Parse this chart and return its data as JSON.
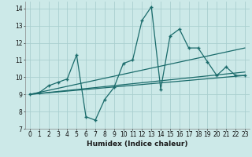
{
  "xlabel": "Humidex (Indice chaleur)",
  "background_color": "#cce9e8",
  "grid_color": "#aacfcf",
  "line_color": "#1a6b6b",
  "xlim": [
    -0.5,
    23.5
  ],
  "ylim": [
    7,
    14.4
  ],
  "xticks": [
    0,
    1,
    2,
    3,
    4,
    5,
    6,
    7,
    8,
    9,
    10,
    11,
    12,
    13,
    14,
    15,
    16,
    17,
    18,
    19,
    20,
    21,
    22,
    23
  ],
  "yticks": [
    7,
    8,
    9,
    10,
    11,
    12,
    13,
    14
  ],
  "series1_x": [
    0,
    1,
    2,
    3,
    4,
    5,
    6,
    7,
    8,
    9,
    10,
    11,
    12,
    13,
    14,
    15,
    16,
    17,
    18,
    19,
    20,
    21,
    22,
    23
  ],
  "series1_y": [
    9.0,
    9.1,
    9.5,
    9.7,
    9.9,
    11.3,
    7.7,
    7.5,
    8.7,
    9.4,
    10.8,
    11.0,
    13.3,
    14.1,
    9.3,
    12.4,
    12.8,
    11.7,
    11.7,
    10.9,
    10.1,
    10.6,
    10.1,
    10.1
  ],
  "series2_x": [
    0,
    23
  ],
  "series2_y": [
    9.0,
    10.3
  ],
  "series3_x": [
    0,
    23
  ],
  "series3_y": [
    9.0,
    11.7
  ],
  "series4_x": [
    0,
    23
  ],
  "series4_y": [
    9.0,
    10.1
  ],
  "xlabel_fontsize": 6.5,
  "tick_fontsize": 5.5,
  "linewidth": 0.9
}
